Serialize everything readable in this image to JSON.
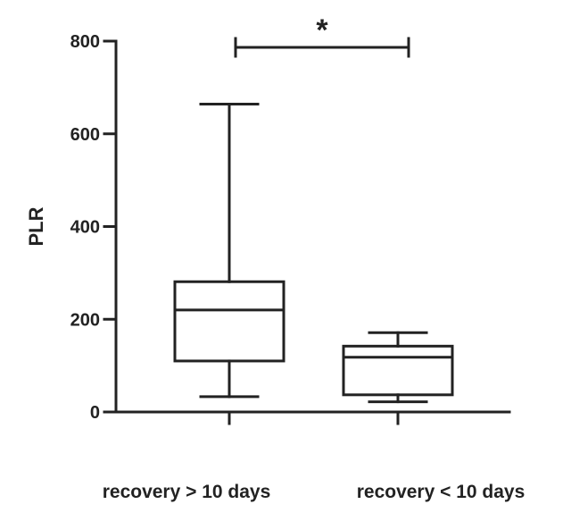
{
  "chart_data": {
    "type": "boxplot",
    "ylabel": "PLR",
    "xlabel": "",
    "ylim": [
      0,
      800
    ],
    "yticks": [
      "0",
      "200",
      "400",
      "600",
      "800"
    ],
    "categories": [
      "recovery > 10 days",
      "recovery < 10 days"
    ],
    "boxes": [
      {
        "whisker_low": 33,
        "q1": 110,
        "median": 220,
        "q3": 281,
        "whisker_high": 664
      },
      {
        "whisker_low": 22,
        "q1": 37,
        "median": 118,
        "q3": 142,
        "whisker_high": 171
      }
    ],
    "significance": {
      "label": "*",
      "between": [
        0,
        1
      ]
    },
    "grid": false,
    "legend": "none"
  },
  "colors": {
    "ink": "#222222",
    "background": "#ffffff"
  }
}
